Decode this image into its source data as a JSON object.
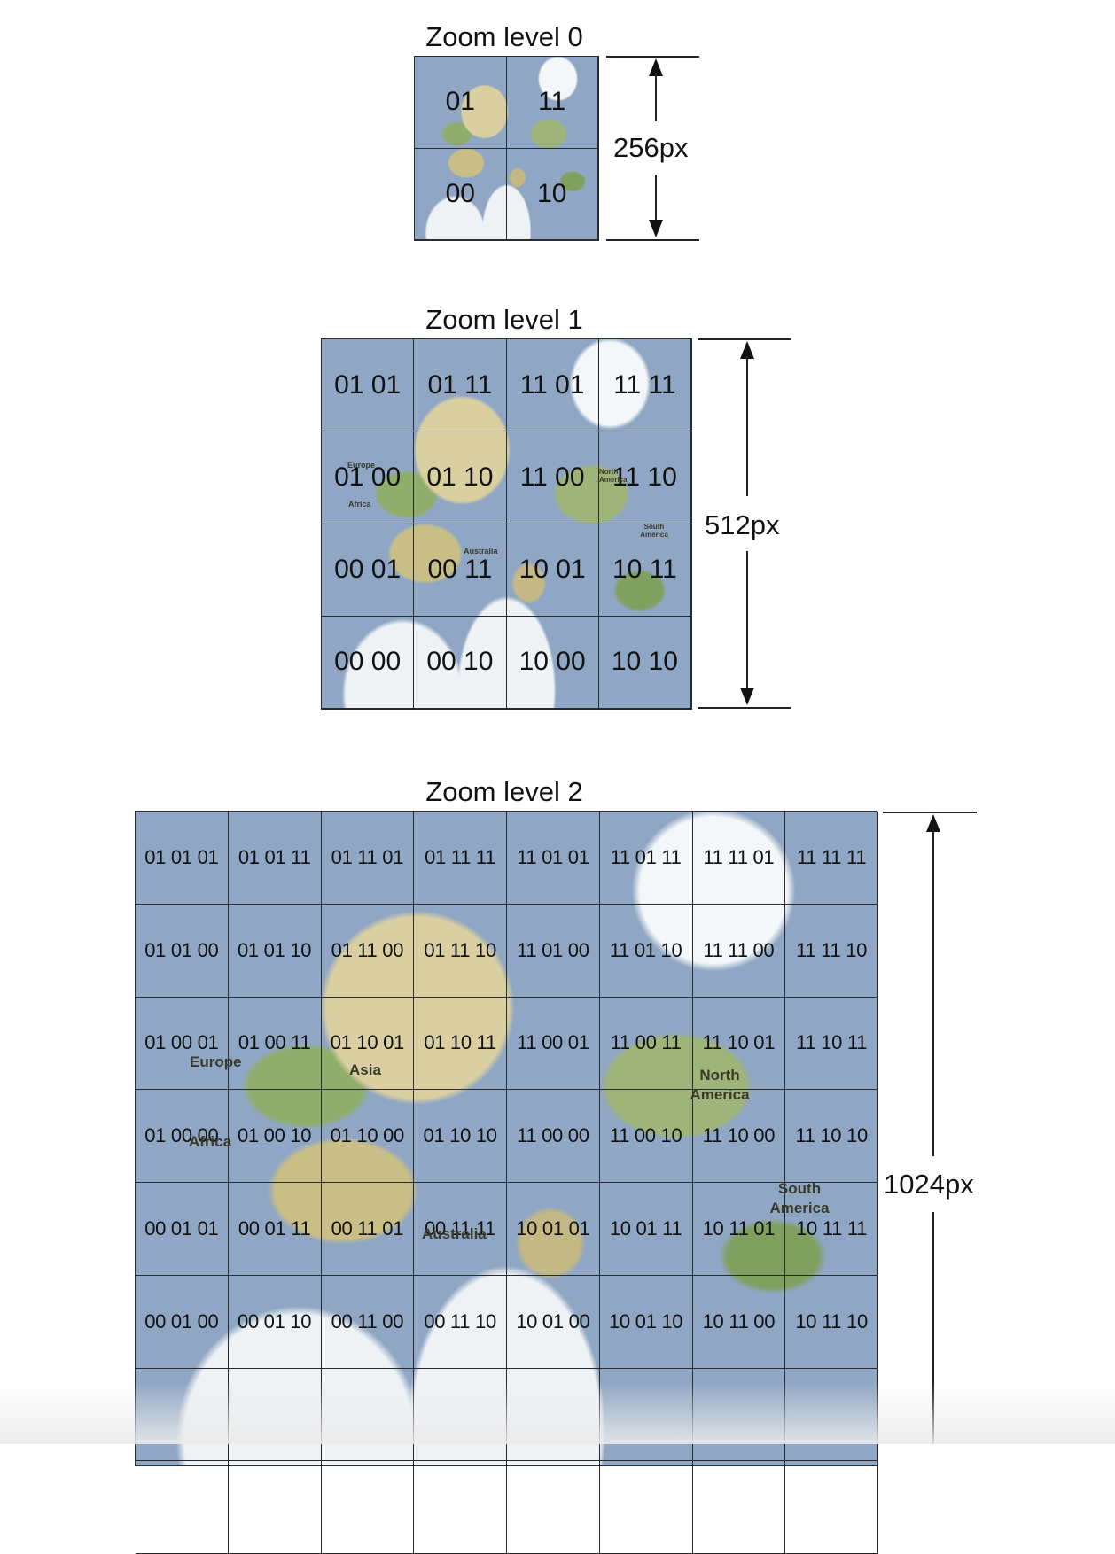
{
  "level0": {
    "title": "Zoom level 0",
    "dimension": "256px",
    "tiles": [
      "01",
      "11",
      "00",
      "10"
    ]
  },
  "level1": {
    "title": "Zoom level 1",
    "dimension": "512px",
    "tiles": [
      "01 01",
      "01 11",
      "11 01",
      "11 11",
      "01 00",
      "01 10",
      "11 00",
      "11 10",
      "00 01",
      "00 11",
      "10 01",
      "10 11",
      "00 00",
      "00 10",
      "10 00",
      "10 10"
    ],
    "map_labels": [
      "Europe",
      "Africa",
      "North America",
      "South America",
      "Australia"
    ]
  },
  "level2": {
    "title": "Zoom level 2",
    "dimension": "1024px",
    "tiles": [
      "01 01 01",
      "01 01 11",
      "01 11 01",
      "01 11 11",
      "11 01 01",
      "11 01 11",
      "11 11 01",
      "11 11 11",
      "01 01 00",
      "01 01 10",
      "01 11 00",
      "01 11 10",
      "11 01 00",
      "11 01 10",
      "11 11 00",
      "11 11 10",
      "01 00 01",
      "01 00 11",
      "01 10 01",
      "01 10 11",
      "11 00 01",
      "11 00 11",
      "11 10 01",
      "11 10 11",
      "01 00 00",
      "01 00 10",
      "01 10 00",
      "01 10 10",
      "11 00 00",
      "11 00 10",
      "11 10 00",
      "11 10 10",
      "00 01 01",
      "00 01 11",
      "00 11 01",
      "00 11 11",
      "10 01 01",
      "10 01 11",
      "10 11 01",
      "10 11 11",
      "00 01 00",
      "00 01 10",
      "00 11 00",
      "00 11 10",
      "10 01 00",
      "10 01 10",
      "10 11 00",
      "10 11 10",
      "",
      "",
      "",
      "",
      "",
      "",
      "",
      "",
      "",
      "",
      "",
      "",
      "",
      "",
      "",
      ""
    ],
    "map_labels": [
      "Europe",
      "Asia",
      "North America",
      "Africa",
      "South America",
      "Australia"
    ]
  }
}
